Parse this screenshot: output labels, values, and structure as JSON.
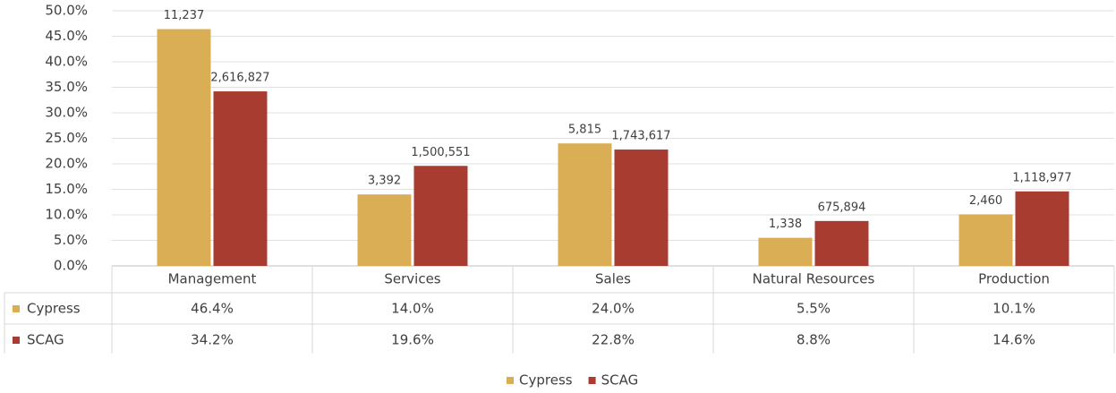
{
  "chart_data": {
    "type": "bar",
    "categories": [
      "Management",
      "Services",
      "Sales",
      "Natural Resources",
      "Production"
    ],
    "series": [
      {
        "name": "Cypress",
        "color": "#d9ae55",
        "values": [
          46.4,
          14.0,
          24.0,
          5.5,
          10.1
        ],
        "value_labels": [
          "46.4%",
          "14.0%",
          "24.0%",
          "5.5%",
          "10.1%"
        ],
        "counts": [
          11237,
          3392,
          5815,
          1338,
          2460
        ],
        "count_labels": [
          "11,237",
          "3,392",
          "5,815",
          "1,338",
          "2,460"
        ]
      },
      {
        "name": "SCAG",
        "color": "#a93c30",
        "values": [
          34.2,
          19.6,
          22.8,
          8.8,
          14.6
        ],
        "value_labels": [
          "34.2%",
          "19.6%",
          "22.8%",
          "8.8%",
          "14.6%"
        ],
        "counts": [
          2616827,
          1500551,
          1743617,
          675894,
          1118977
        ],
        "count_labels": [
          "2,616,827",
          "1,500,551",
          "1,743,617",
          "675,894",
          "1,118,977"
        ]
      }
    ],
    "ylim": [
      0,
      50
    ],
    "yticks": [
      {
        "value": 0,
        "label": "0.0%"
      },
      {
        "value": 5,
        "label": "5.0%"
      },
      {
        "value": 10,
        "label": "10.0%"
      },
      {
        "value": 15,
        "label": "15.0%"
      },
      {
        "value": 20,
        "label": "20.0%"
      },
      {
        "value": 25,
        "label": "25.0%"
      },
      {
        "value": 30,
        "label": "30.0%"
      },
      {
        "value": 35,
        "label": "35.0%"
      },
      {
        "value": 40,
        "label": "40.0%"
      },
      {
        "value": 45,
        "label": "45.0%"
      },
      {
        "value": 50,
        "label": "50.0%"
      }
    ],
    "grid": true,
    "legend": "bottom"
  }
}
